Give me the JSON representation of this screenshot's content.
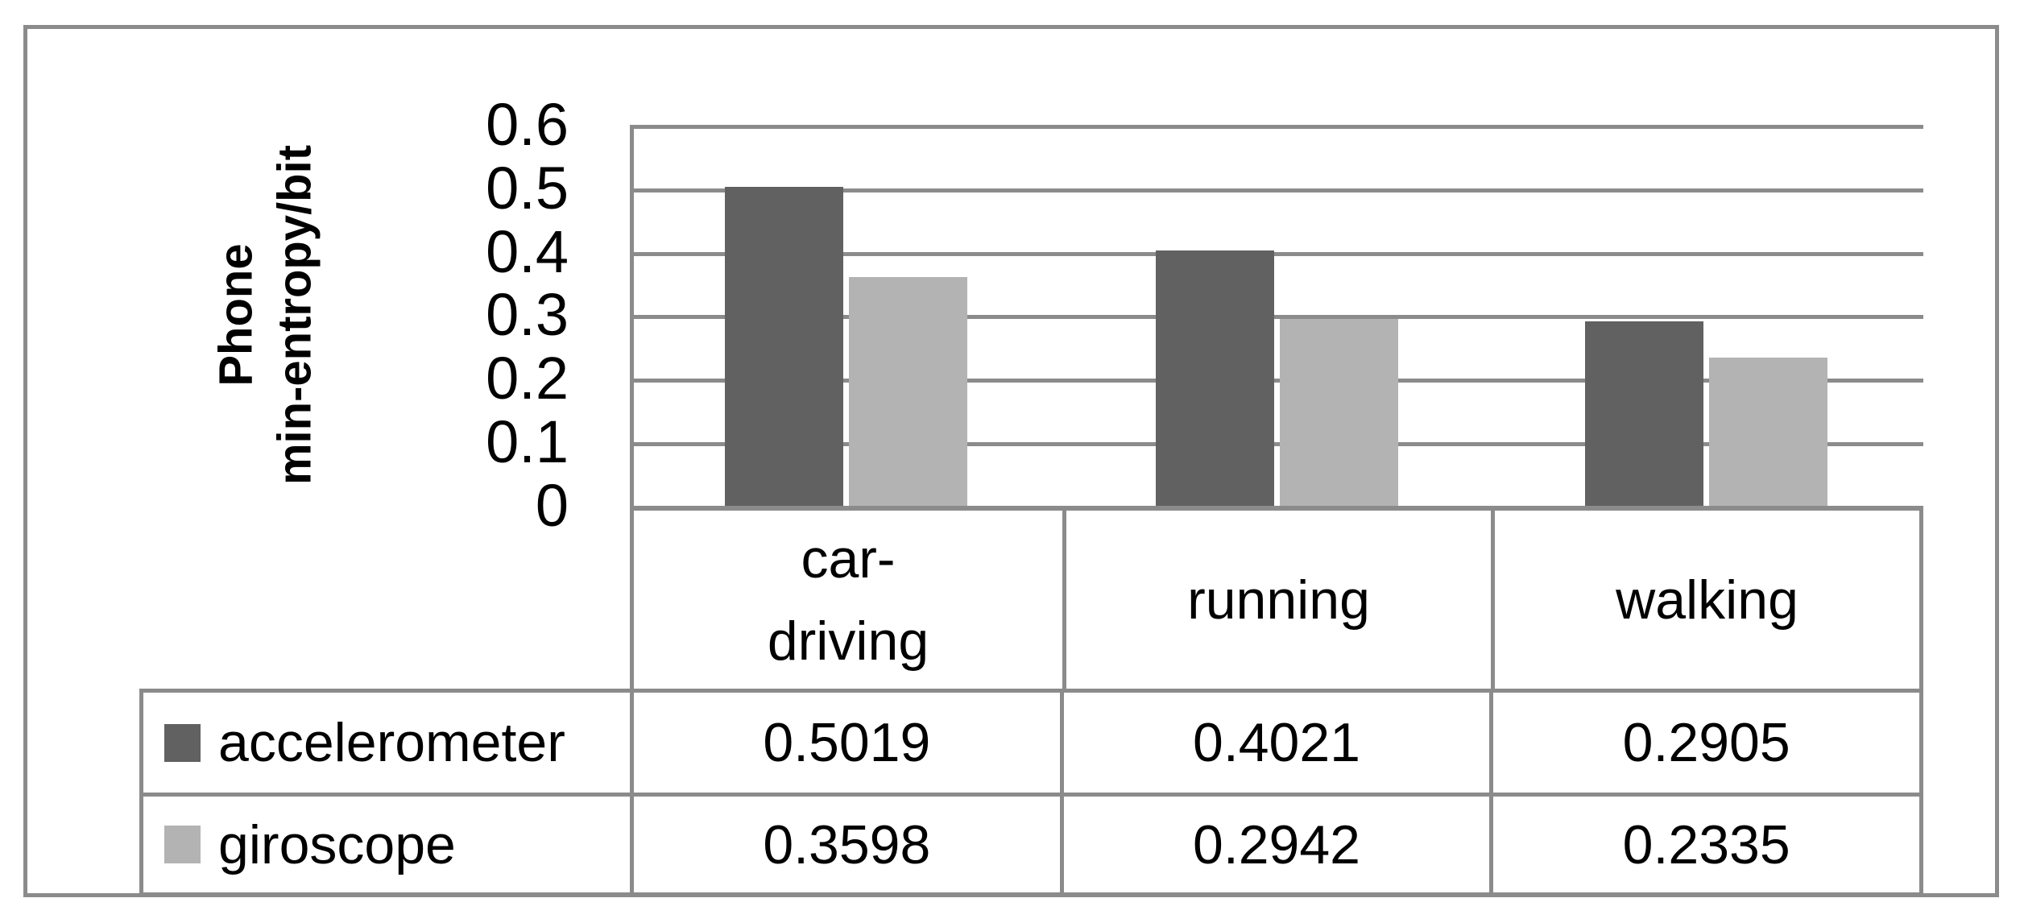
{
  "chart_data": {
    "type": "bar",
    "title": "",
    "categories": [
      "car-driving",
      "running",
      "walking"
    ],
    "series": [
      {
        "name": "accelerometer",
        "color": "#616161",
        "values": [
          0.5019,
          0.4021,
          0.2905
        ]
      },
      {
        "name": "giroscope",
        "color": "#b3b3b3",
        "values": [
          0.3598,
          0.2942,
          0.2335
        ]
      }
    ],
    "ylabel_line1": "Phone",
    "ylabel_line2": "min-entropy/bit",
    "ylim": [
      0,
      0.6
    ],
    "yticks": [
      "0.6",
      "0.5",
      "0.4",
      "0.3",
      "0.2",
      "0.1",
      "0"
    ],
    "grid": "horizontal",
    "legend_position": "table-left-column",
    "gridline_color": "#8b8b8b",
    "background": "#ffffff"
  },
  "data_table": {
    "column_headers": [
      "car-\ndriving",
      "running",
      "walking"
    ],
    "rows": [
      {
        "legend": "accelerometer",
        "values": [
          "0.5019",
          "0.4021",
          "0.2905"
        ]
      },
      {
        "legend": "giroscope",
        "values": [
          "0.3598",
          "0.2942",
          "0.2335"
        ]
      }
    ]
  }
}
